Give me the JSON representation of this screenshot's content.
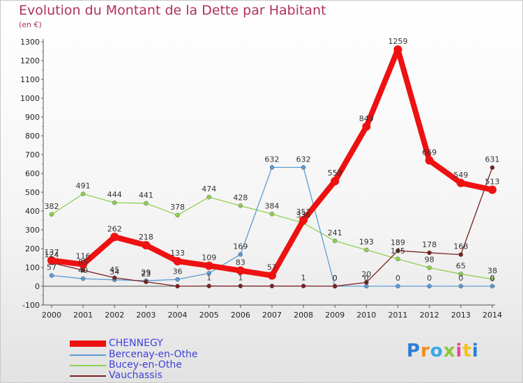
{
  "header": {
    "title": "Evolution du Montant de la Dette par Habitant",
    "unit": "(en €)"
  },
  "logo": {
    "text": "Proxiti",
    "colors": [
      "#2a7fd4",
      "#f08c1a",
      "#3aa6e8",
      "#8cc63f",
      "#e84a8a",
      "#f0c419",
      "#2a7fd4"
    ]
  },
  "chart_data": {
    "type": "line",
    "x": [
      "2000",
      "2001",
      "2002",
      "2003",
      "2004",
      "2005",
      "2006",
      "2007",
      "2008",
      "2009",
      "2010",
      "2011",
      "2012",
      "2013",
      "2014"
    ],
    "ylim": [
      -100,
      1300
    ],
    "yticks": [
      -100,
      0,
      100,
      200,
      300,
      400,
      500,
      600,
      700,
      800,
      900,
      1000,
      1100,
      1200,
      1300
    ],
    "grid": false,
    "legend_position": "bottom-left",
    "series": [
      {
        "name": "CHENNEGY",
        "color": "#ee1111",
        "values": [
          137,
          116,
          262,
          218,
          133,
          109,
          83,
          57,
          352,
          559,
          849,
          1259,
          669,
          549,
          513
        ],
        "labels": [
          "137",
          "116",
          "262",
          "218",
          "133",
          "109",
          "83",
          "57",
          "352",
          "559",
          "849",
          "1259",
          "669",
          "549",
          "513"
        ]
      },
      {
        "name": "Bercenay-en-Othe",
        "color": "#5b9bd5",
        "values": [
          57,
          40,
          34,
          29,
          36,
          69,
          169,
          632,
          632,
          0,
          0,
          0,
          0,
          0,
          0
        ],
        "labels": [
          "57",
          "40",
          "34",
          "29",
          "36",
          "",
          "169",
          "632",
          "632",
          "0",
          "0",
          "0",
          "0",
          "0",
          "0"
        ]
      },
      {
        "name": "Bucey-en-Othe",
        "color": "#8fd14f",
        "values": [
          382,
          491,
          444,
          441,
          378,
          474,
          428,
          384,
          336,
          241,
          193,
          145,
          98,
          65,
          38
        ],
        "labels": [
          "382",
          "491",
          "444",
          "441",
          "378",
          "474",
          "428",
          "384",
          "336",
          "241",
          "193",
          "145",
          "98",
          "65",
          "38"
        ]
      },
      {
        "name": "Vauchassis",
        "color": "#7a1f1f",
        "values": [
          124,
          85,
          45,
          23,
          0,
          1,
          1,
          1,
          1,
          0,
          20,
          189,
          178,
          168,
          631
        ],
        "labels": [
          "124",
          "85",
          "45",
          "23",
          "",
          "1",
          "1",
          "",
          "1",
          "0",
          "20",
          "189",
          "178",
          "168",
          "631"
        ]
      }
    ]
  }
}
